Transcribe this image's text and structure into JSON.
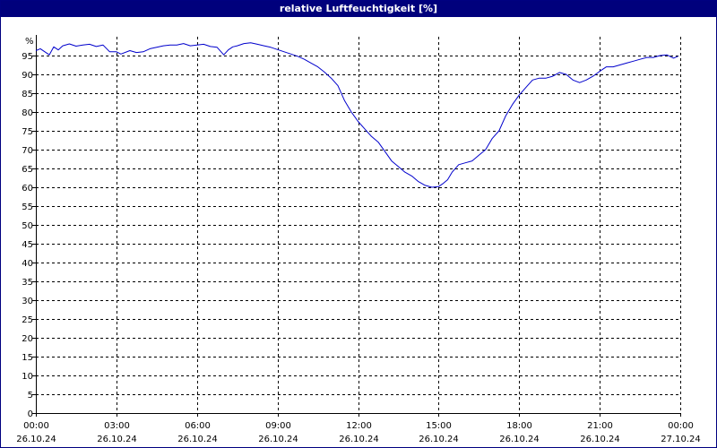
{
  "window": {
    "title": "relative Luftfeuchtigkeit [%]"
  },
  "colors": {
    "titlebar": "#00007c",
    "line": "#0000cc",
    "grid": "#000000",
    "background": "#ffffff"
  },
  "chart_data": {
    "type": "line",
    "title": "relative Luftfeuchtigkeit [%]",
    "ylabel": "%",
    "xlabel": "",
    "ylim": [
      0,
      100
    ],
    "yticks": [
      0,
      5,
      10,
      15,
      20,
      25,
      30,
      35,
      40,
      45,
      50,
      55,
      60,
      65,
      70,
      75,
      80,
      85,
      90,
      95
    ],
    "xlim": [
      "26.10.24 00:00",
      "27.10.24 00:00"
    ],
    "xticks": [
      {
        "time": "00:00",
        "date": "26.10.24"
      },
      {
        "time": "03:00",
        "date": "26.10.24"
      },
      {
        "time": "06:00",
        "date": "26.10.24"
      },
      {
        "time": "09:00",
        "date": "26.10.24"
      },
      {
        "time": "12:00",
        "date": "26.10.24"
      },
      {
        "time": "15:00",
        "date": "26.10.24"
      },
      {
        "time": "18:00",
        "date": "26.10.24"
      },
      {
        "time": "21:00",
        "date": "26.10.24"
      },
      {
        "time": "00:00",
        "date": "27.10.24"
      }
    ],
    "grid": true,
    "series": [
      {
        "color": "#0000cc",
        "x": [
          "00:00",
          "00:10",
          "00:20",
          "00:30",
          "00:40",
          "00:50",
          "01:00",
          "01:15",
          "01:30",
          "01:45",
          "02:00",
          "02:15",
          "02:30",
          "02:45",
          "03:00",
          "03:10",
          "03:30",
          "03:45",
          "04:00",
          "04:15",
          "04:30",
          "04:45",
          "05:00",
          "05:15",
          "05:30",
          "05:45",
          "06:00",
          "06:15",
          "06:30",
          "06:45",
          "07:00",
          "07:10",
          "07:20",
          "07:30",
          "07:45",
          "08:00",
          "08:15",
          "08:30",
          "08:45",
          "09:00",
          "09:15",
          "09:30",
          "09:45",
          "10:00",
          "10:15",
          "10:30",
          "10:45",
          "11:00",
          "11:15",
          "11:30",
          "11:45",
          "12:00",
          "12:15",
          "12:30",
          "12:45",
          "13:00",
          "13:15",
          "13:30",
          "13:45",
          "14:00",
          "14:15",
          "14:30",
          "14:45",
          "15:00",
          "15:10",
          "15:20",
          "15:30",
          "15:45",
          "16:00",
          "16:15",
          "16:30",
          "16:45",
          "17:00",
          "17:15",
          "17:30",
          "17:45",
          "18:00",
          "18:15",
          "18:30",
          "18:45",
          "19:00",
          "19:15",
          "19:30",
          "19:45",
          "20:00",
          "20:15",
          "20:30",
          "20:45",
          "21:00",
          "21:15",
          "21:30",
          "21:45",
          "22:00",
          "22:15",
          "22:30",
          "22:45",
          "23:00",
          "23:15",
          "23:30",
          "23:45",
          "23:55"
        ],
        "y": [
          96.3,
          96.8,
          96.0,
          95.2,
          97.3,
          96.5,
          97.6,
          98.1,
          97.5,
          97.8,
          98.0,
          97.4,
          97.8,
          96.0,
          96.0,
          95.4,
          96.3,
          95.8,
          96.0,
          96.8,
          97.2,
          97.6,
          97.8,
          97.8,
          98.2,
          97.6,
          97.8,
          98.0,
          97.4,
          97.2,
          95.2,
          96.5,
          97.3,
          97.6,
          98.2,
          98.4,
          98.0,
          97.6,
          97.2,
          96.6,
          96.0,
          95.4,
          94.8,
          94.0,
          93.0,
          92.0,
          90.6,
          89.0,
          87.0,
          83.0,
          80.0,
          77.5,
          75.5,
          73.5,
          72.0,
          69.5,
          67.0,
          65.5,
          64.0,
          63.0,
          61.5,
          60.5,
          60.0,
          60.2,
          61.0,
          62.0,
          64.0,
          66.0,
          66.5,
          67.0,
          68.5,
          70.0,
          73.0,
          75.0,
          79.0,
          82.0,
          84.5,
          86.5,
          88.5,
          89.0,
          89.0,
          89.5,
          90.5,
          90.0,
          88.5,
          87.8,
          88.5,
          89.5,
          90.8,
          92.0,
          92.0,
          92.5,
          93.0,
          93.5,
          94.0,
          94.5,
          94.5,
          95.0,
          95.2,
          94.3,
          94.8
        ]
      }
    ]
  }
}
